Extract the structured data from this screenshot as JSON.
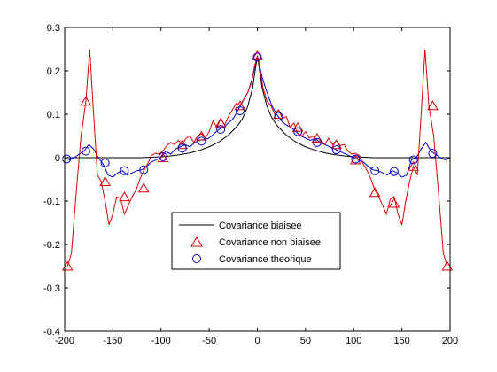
{
  "chart_data": {
    "type": "line",
    "xlim": [
      -200,
      200
    ],
    "ylim": [
      -0.4,
      0.3
    ],
    "x_ticks": [
      -200,
      -150,
      -100,
      -50,
      0,
      50,
      100,
      150,
      200
    ],
    "y_ticks": [
      -0.4,
      -0.3,
      -0.2,
      -0.1,
      0,
      0.1,
      0.2,
      0.3
    ],
    "x_tick_labels": [
      "-200",
      "-150",
      "-100",
      "-50",
      "0",
      "50",
      "100",
      "150",
      "200"
    ],
    "y_tick_labels": [
      "-0.4",
      "-0.3",
      "-0.2",
      "-0.1",
      "0",
      "0.1",
      "0.2",
      "0.3"
    ],
    "grid": false,
    "legend_position": "lower-center",
    "series": [
      {
        "name": "Covariance biaisee",
        "color": "#000000",
        "line": "solid",
        "marker": "none",
        "x": [
          -200,
          -180,
          -160,
          -140,
          -120,
          -110,
          -100,
          -90,
          -80,
          -70,
          -60,
          -50,
          -40,
          -30,
          -20,
          -15,
          -10,
          -5,
          0,
          5,
          10,
          15,
          20,
          30,
          40,
          50,
          60,
          70,
          80,
          90,
          100,
          110,
          120,
          140,
          160,
          180,
          200
        ],
        "y": [
          0,
          0,
          0,
          0,
          0,
          0.001,
          0.002,
          0.004,
          0.007,
          0.011,
          0.017,
          0.025,
          0.036,
          0.052,
          0.075,
          0.092,
          0.118,
          0.16,
          0.235,
          0.16,
          0.118,
          0.092,
          0.075,
          0.052,
          0.036,
          0.025,
          0.017,
          0.011,
          0.007,
          0.004,
          0.002,
          0.001,
          0,
          0,
          0,
          0,
          0
        ]
      },
      {
        "name": "Covariance non biaisee",
        "color": "#dd0000",
        "line": "solid",
        "marker": "triangle",
        "x": [
          -197,
          -193,
          -188,
          -183,
          -178,
          -174,
          -170,
          -166,
          -162,
          -158,
          -154,
          -150,
          -146,
          -142,
          -138,
          -134,
          -130,
          -126,
          -122,
          -118,
          -114,
          -110,
          -106,
          -102,
          -98,
          -94,
          -90,
          -86,
          -82,
          -78,
          -74,
          -70,
          -66,
          -62,
          -58,
          -54,
          -50,
          -46,
          -42,
          -38,
          -34,
          -30,
          -26,
          -22,
          -18,
          -14,
          -10,
          -6,
          -3,
          0,
          3,
          6,
          10,
          14,
          18,
          22,
          26,
          30,
          34,
          38,
          42,
          46,
          50,
          54,
          58,
          62,
          66,
          70,
          74,
          78,
          82,
          86,
          90,
          94,
          98,
          102,
          106,
          110,
          114,
          118,
          122,
          126,
          130,
          134,
          138,
          142,
          146,
          150,
          154,
          158,
          162,
          166,
          170,
          174,
          178,
          183,
          188,
          193,
          197
        ],
        "y": [
          -0.25,
          -0.22,
          -0.08,
          0.05,
          0.13,
          0.25,
          0.1,
          -0.04,
          -0.055,
          -0.1,
          -0.155,
          -0.13,
          -0.09,
          -0.095,
          -0.13,
          -0.11,
          -0.09,
          -0.075,
          -0.05,
          -0.03,
          -0.015,
          0.005,
          0.01,
          0.008,
          0.015,
          0.028,
          0.035,
          0.03,
          0.04,
          0.03,
          0.045,
          0.05,
          0.035,
          0.05,
          0.055,
          0.045,
          0.06,
          0.085,
          0.07,
          0.09,
          0.075,
          0.095,
          0.11,
          0.125,
          0.12,
          0.135,
          0.15,
          0.175,
          0.21,
          0.235,
          0.2,
          0.16,
          0.13,
          0.12,
          0.1,
          0.11,
          0.09,
          0.095,
          0.07,
          0.08,
          0.055,
          0.05,
          0.06,
          0.045,
          0.05,
          0.035,
          0.04,
          0.03,
          0.045,
          0.03,
          0.04,
          0.028,
          0.03,
          0.015,
          0.008,
          0.01,
          0.005,
          -0.015,
          -0.03,
          -0.05,
          -0.075,
          -0.09,
          -0.11,
          -0.13,
          -0.095,
          -0.09,
          -0.13,
          -0.155,
          -0.1,
          -0.055,
          -0.02,
          -0.04,
          0.1,
          0.25,
          0.12,
          0.05,
          -0.08,
          -0.22,
          -0.25
        ]
      },
      {
        "name": "Covariance theorique",
        "color": "#0000cc",
        "line": "solid",
        "marker": "circle",
        "x": [
          -200,
          -195,
          -190,
          -185,
          -180,
          -175,
          -170,
          -165,
          -160,
          -155,
          -150,
          -145,
          -140,
          -135,
          -130,
          -125,
          -120,
          -115,
          -110,
          -105,
          -100,
          -95,
          -90,
          -85,
          -80,
          -75,
          -70,
          -65,
          -60,
          -55,
          -50,
          -45,
          -40,
          -35,
          -30,
          -25,
          -20,
          -15,
          -10,
          -5,
          0,
          5,
          10,
          15,
          20,
          25,
          30,
          35,
          40,
          45,
          50,
          55,
          60,
          65,
          70,
          75,
          80,
          85,
          90,
          95,
          100,
          105,
          110,
          115,
          120,
          125,
          130,
          135,
          140,
          145,
          150,
          155,
          160,
          165,
          170,
          175,
          180,
          185,
          190,
          195,
          200
        ],
        "y": [
          0,
          -0.005,
          0,
          0.008,
          0.015,
          0.03,
          0.02,
          0,
          -0.015,
          -0.04,
          -0.045,
          -0.035,
          -0.03,
          -0.04,
          -0.035,
          -0.03,
          -0.028,
          -0.02,
          -0.01,
          -0.005,
          0,
          0.015,
          0.008,
          0.02,
          0.025,
          0.03,
          0.025,
          0.035,
          0.04,
          0.042,
          0.045,
          0.055,
          0.065,
          0.07,
          0.08,
          0.09,
          0.11,
          0.13,
          0.15,
          0.185,
          0.235,
          0.185,
          0.15,
          0.12,
          0.1,
          0.085,
          0.075,
          0.07,
          0.06,
          0.05,
          0.045,
          0.04,
          0.045,
          0.035,
          0.03,
          0.025,
          0.02,
          0.015,
          0.01,
          0.005,
          0,
          -0.005,
          -0.01,
          -0.02,
          -0.028,
          -0.03,
          -0.035,
          -0.04,
          -0.03,
          -0.035,
          -0.045,
          -0.04,
          -0.005,
          0,
          0.02,
          0.035,
          0.015,
          0.008,
          0,
          -0.005,
          0
        ]
      }
    ],
    "markers": {
      "non_biaisee": {
        "x": [
          -197,
          -178,
          -158,
          -138,
          -118,
          -98,
          -78,
          -58,
          -38,
          -18,
          0,
          22,
          42,
          62,
          82,
          102,
          122,
          142,
          162,
          182,
          197
        ],
        "y": [
          -0.25,
          0.13,
          -0.055,
          -0.09,
          -0.07,
          0,
          0.03,
          0.05,
          0.08,
          0.12,
          0.235,
          0.1,
          0.07,
          0.045,
          0.03,
          -0.005,
          -0.08,
          -0.105,
          -0.02,
          0.12,
          -0.25
        ]
      },
      "theorique": {
        "x": [
          -198,
          -178,
          -158,
          -138,
          -118,
          -98,
          -78,
          -58,
          -38,
          -18,
          0,
          22,
          42,
          62,
          82,
          102,
          122,
          142,
          162,
          182
        ],
        "y": [
          -0.003,
          0.015,
          -0.012,
          -0.03,
          -0.028,
          0.002,
          0.022,
          0.038,
          0.065,
          0.108,
          0.232,
          0.095,
          0.06,
          0.035,
          0.018,
          -0.003,
          -0.03,
          -0.032,
          -0.005,
          0.01
        ]
      }
    }
  }
}
